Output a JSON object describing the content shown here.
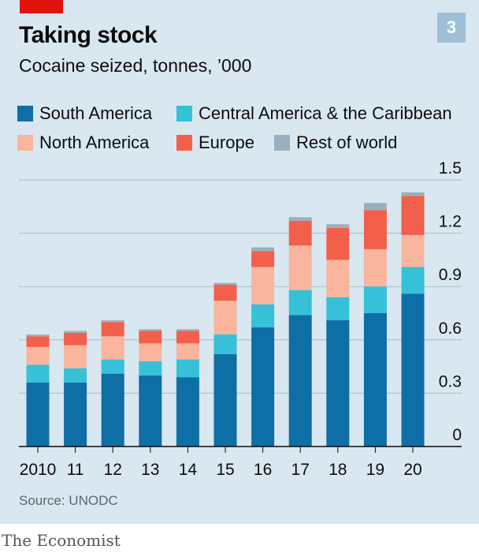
{
  "header": {
    "title": "Taking stock",
    "subtitle": "Cocaine seized, tonnes, ’000",
    "badge": "3"
  },
  "source": "Source: UNODC",
  "footer": "The Economist",
  "colors": {
    "panel_bg": "#d8e7f0",
    "brand_red": "#e3120b",
    "gridline": "#a9bdca",
    "axis": "#0d0d0d"
  },
  "chart_data": {
    "type": "bar",
    "stacked": true,
    "categories": [
      "2010",
      "11",
      "12",
      "13",
      "14",
      "15",
      "16",
      "17",
      "18",
      "19",
      "20"
    ],
    "series": [
      {
        "name": "South America",
        "color": "#0e6ea6",
        "values": [
          0.36,
          0.36,
          0.41,
          0.4,
          0.39,
          0.52,
          0.67,
          0.74,
          0.71,
          0.75,
          0.86
        ]
      },
      {
        "name": "Central America & the Caribbean",
        "color": "#36c1d8",
        "values": [
          0.1,
          0.08,
          0.08,
          0.08,
          0.1,
          0.11,
          0.13,
          0.14,
          0.13,
          0.15,
          0.15
        ]
      },
      {
        "name": "North America",
        "color": "#f9b59d",
        "values": [
          0.1,
          0.13,
          0.13,
          0.1,
          0.09,
          0.19,
          0.21,
          0.25,
          0.21,
          0.21,
          0.18
        ]
      },
      {
        "name": "Europe",
        "color": "#f2604b",
        "values": [
          0.06,
          0.07,
          0.08,
          0.07,
          0.07,
          0.09,
          0.09,
          0.14,
          0.18,
          0.22,
          0.22
        ]
      },
      {
        "name": "Rest of world",
        "color": "#9bb0bd",
        "values": [
          0.01,
          0.01,
          0.01,
          0.01,
          0.01,
          0.01,
          0.02,
          0.02,
          0.02,
          0.04,
          0.02
        ]
      }
    ],
    "ylim": [
      0,
      1.5
    ],
    "yticks": [
      "0",
      "0.3",
      "0.6",
      "0.9",
      "1.2",
      "1.5"
    ],
    "ytick_values": [
      0,
      0.3,
      0.6,
      0.9,
      1.2,
      1.5
    ],
    "grid": true,
    "legend_position": "top"
  }
}
